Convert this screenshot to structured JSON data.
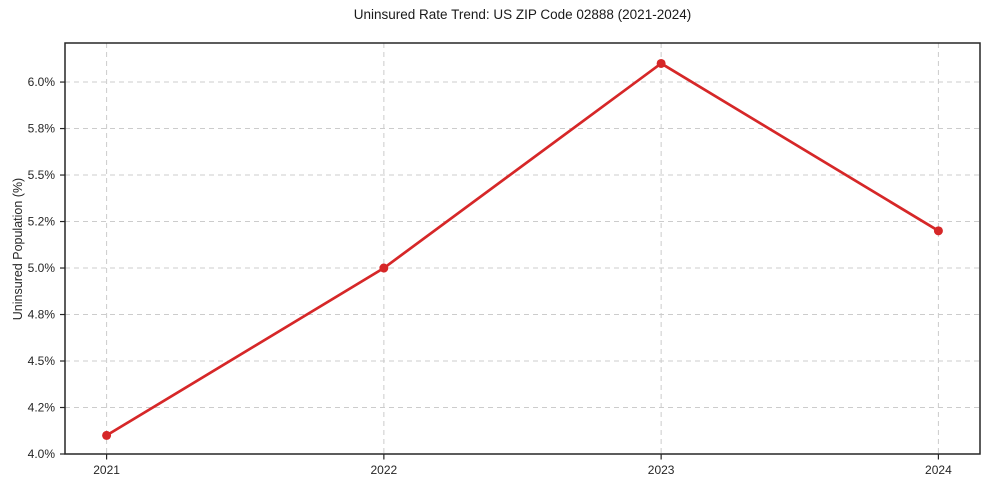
{
  "chart_data": {
    "type": "line",
    "title": "Uninsured Rate Trend: US ZIP Code 02888 (2021-2024)",
    "xlabel": "",
    "ylabel": "Uninsured Population (%)",
    "x": [
      2021,
      2022,
      2023,
      2024
    ],
    "x_tick_labels": [
      "2021",
      "2022",
      "2023",
      "2024"
    ],
    "series": [
      {
        "name": "Uninsured rate",
        "values": [
          4.1,
          5.0,
          6.1,
          5.2
        ],
        "color": "#d62728",
        "marker": "circle",
        "line_width": 2.7,
        "marker_radius": 4.5
      }
    ],
    "yticks": {
      "values": [
        4.0,
        4.25,
        4.5,
        4.75,
        5.0,
        5.25,
        5.5,
        5.75,
        6.0
      ],
      "labels": [
        "4.0%",
        "4.2%",
        "4.5%",
        "4.8%",
        "5.0%",
        "5.2%",
        "5.5%",
        "5.8%",
        "6.0%"
      ]
    },
    "xlim": [
      2020.85,
      2024.15
    ],
    "ylim": [
      4.0,
      6.21
    ],
    "grid": true,
    "grid_style": "dashed",
    "legend": "none",
    "colors": {
      "line": "#d62728",
      "grid": "#cccccc",
      "spine": "#262626",
      "tick_label": "#262626",
      "title": "#1a1a1a",
      "background": "#ffffff"
    }
  }
}
